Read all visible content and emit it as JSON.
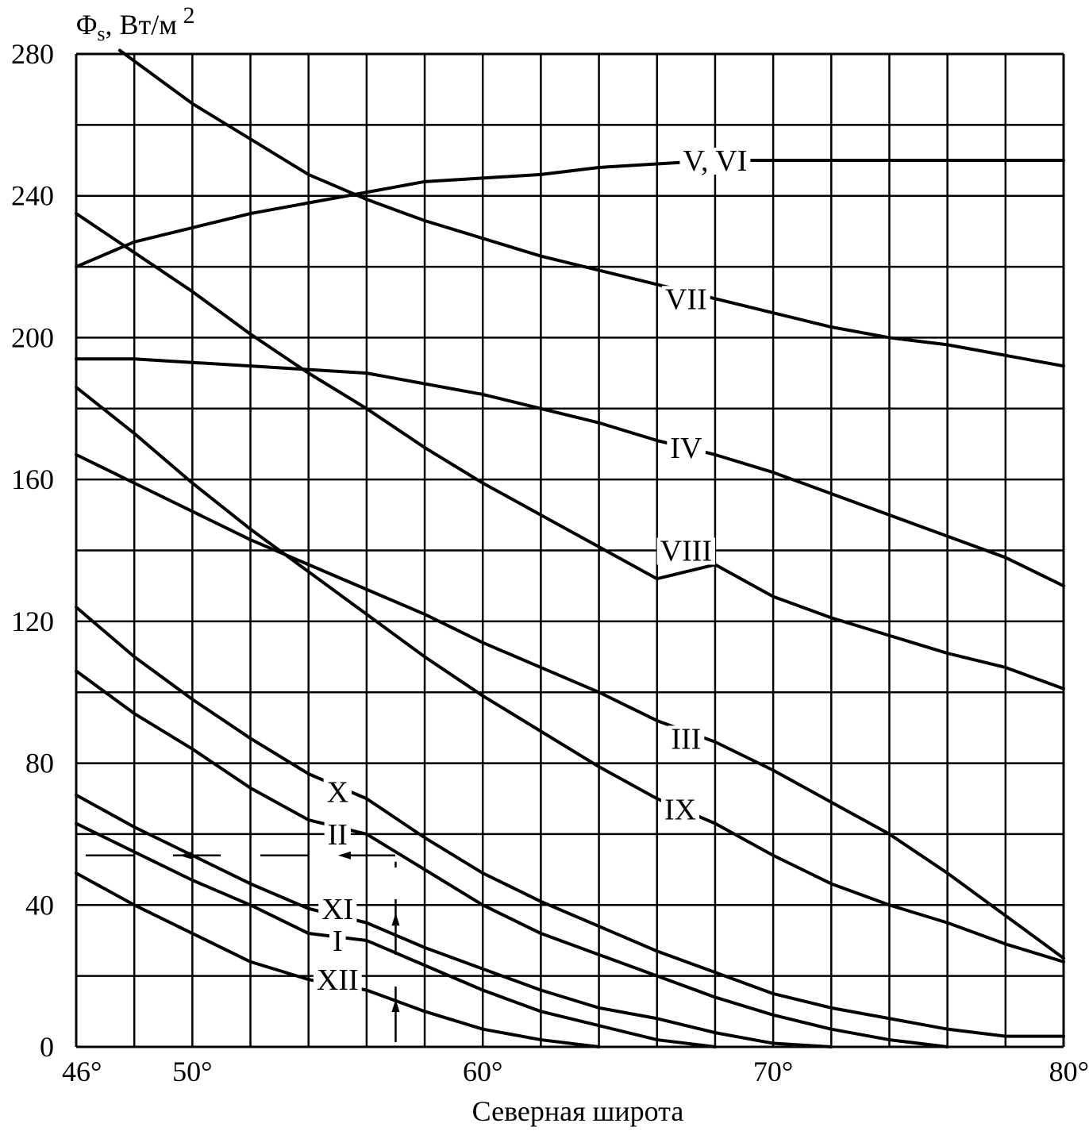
{
  "chart_data": {
    "type": "line",
    "ylabel": "Φs, Вт/м",
    "ylabel_sub": "s",
    "ylabel_sup": "2",
    "xlabel": "Северная широта",
    "xlim": [
      46,
      80
    ],
    "ylim": [
      0,
      280
    ],
    "grid": true,
    "x_ticks": [
      {
        "value": 46,
        "label": "46°"
      },
      {
        "value": 50,
        "label": "50°"
      },
      {
        "value": 60,
        "label": "60°"
      },
      {
        "value": 70,
        "label": "70°"
      },
      {
        "value": 80,
        "label": "80°"
      }
    ],
    "y_ticks": [
      {
        "value": 0,
        "label": "0"
      },
      {
        "value": 40,
        "label": "40"
      },
      {
        "value": 80,
        "label": "80"
      },
      {
        "value": 120,
        "label": "120"
      },
      {
        "value": 160,
        "label": "160"
      },
      {
        "value": 200,
        "label": "200"
      },
      {
        "value": 240,
        "label": "240"
      },
      {
        "value": 280,
        "label": "280"
      }
    ],
    "series": [
      {
        "name": "V, VI",
        "label_at": [
          68,
          250
        ],
        "points": [
          [
            46,
            220
          ],
          [
            48,
            227
          ],
          [
            50,
            231
          ],
          [
            52,
            235
          ],
          [
            54,
            238
          ],
          [
            56,
            241
          ],
          [
            58,
            244
          ],
          [
            60,
            245
          ],
          [
            62,
            246
          ],
          [
            64,
            248
          ],
          [
            66,
            249
          ],
          [
            68,
            250
          ],
          [
            72,
            250
          ],
          [
            76,
            250
          ],
          [
            80,
            250
          ]
        ]
      },
      {
        "name": "VII",
        "label_at": [
          67,
          211
        ],
        "points": [
          [
            47.5,
            281
          ],
          [
            50,
            266
          ],
          [
            52,
            256
          ],
          [
            54,
            246
          ],
          [
            56,
            239
          ],
          [
            58,
            233
          ],
          [
            60,
            228
          ],
          [
            62,
            223
          ],
          [
            64,
            219
          ],
          [
            66,
            215
          ],
          [
            68,
            211
          ],
          [
            70,
            207
          ],
          [
            72,
            203
          ],
          [
            74,
            200
          ],
          [
            76,
            198
          ],
          [
            78,
            195
          ],
          [
            80,
            192
          ]
        ]
      },
      {
        "name": "IV",
        "label_at": [
          67,
          169
        ],
        "points": [
          [
            46,
            194
          ],
          [
            48,
            194
          ],
          [
            50,
            193
          ],
          [
            52,
            192
          ],
          [
            54,
            191
          ],
          [
            56,
            190
          ],
          [
            58,
            187
          ],
          [
            60,
            184
          ],
          [
            62,
            180
          ],
          [
            64,
            176
          ],
          [
            66,
            171
          ],
          [
            68,
            167
          ],
          [
            70,
            162
          ],
          [
            72,
            156
          ],
          [
            74,
            150
          ],
          [
            76,
            144
          ],
          [
            78,
            138
          ],
          [
            80,
            130
          ]
        ]
      },
      {
        "name": "VIII",
        "label_at": [
          67,
          140
        ],
        "points": [
          [
            46,
            235
          ],
          [
            48,
            224
          ],
          [
            50,
            213
          ],
          [
            52,
            201
          ],
          [
            54,
            190
          ],
          [
            56,
            180
          ],
          [
            58,
            169
          ],
          [
            60,
            159
          ],
          [
            62,
            150
          ],
          [
            64,
            141
          ],
          [
            66,
            132
          ],
          [
            68,
            136
          ],
          [
            70,
            127
          ],
          [
            72,
            121
          ],
          [
            74,
            116
          ],
          [
            76,
            111
          ],
          [
            78,
            107
          ],
          [
            80,
            101
          ]
        ]
      },
      {
        "name": "III",
        "label_at": [
          67,
          87
        ],
        "points": [
          [
            46,
            167
          ],
          [
            48,
            159
          ],
          [
            50,
            151
          ],
          [
            52,
            143
          ],
          [
            54,
            136
          ],
          [
            56,
            129
          ],
          [
            58,
            122
          ],
          [
            60,
            114
          ],
          [
            62,
            107
          ],
          [
            64,
            100
          ],
          [
            66,
            92
          ],
          [
            68,
            86
          ],
          [
            70,
            78
          ],
          [
            72,
            69
          ],
          [
            74,
            60
          ],
          [
            76,
            49
          ],
          [
            78,
            37
          ],
          [
            80,
            25
          ]
        ]
      },
      {
        "name": "IX",
        "label_at": [
          66.8,
          67
        ],
        "points": [
          [
            46,
            186
          ],
          [
            48,
            173
          ],
          [
            50,
            159
          ],
          [
            52,
            146
          ],
          [
            54,
            134
          ],
          [
            56,
            122
          ],
          [
            58,
            110
          ],
          [
            60,
            99
          ],
          [
            62,
            89
          ],
          [
            64,
            79
          ],
          [
            66,
            70
          ],
          [
            68,
            63
          ],
          [
            70,
            54
          ],
          [
            72,
            46
          ],
          [
            74,
            40
          ],
          [
            76,
            35
          ],
          [
            78,
            29
          ],
          [
            80,
            24
          ]
        ]
      },
      {
        "name": "X",
        "label_at": [
          55,
          72
        ],
        "points": [
          [
            46,
            124
          ],
          [
            48,
            110
          ],
          [
            50,
            98
          ],
          [
            52,
            87
          ],
          [
            54,
            77
          ],
          [
            56,
            70
          ],
          [
            58,
            59
          ],
          [
            60,
            49
          ],
          [
            62,
            41
          ],
          [
            64,
            34
          ],
          [
            66,
            27
          ],
          [
            68,
            21
          ],
          [
            70,
            15
          ],
          [
            72,
            11
          ],
          [
            74,
            8
          ],
          [
            76,
            5
          ],
          [
            78,
            3
          ],
          [
            80,
            3
          ]
        ]
      },
      {
        "name": "II",
        "label_at": [
          55,
          60
        ],
        "points": [
          [
            46,
            106
          ],
          [
            48,
            94
          ],
          [
            50,
            84
          ],
          [
            52,
            73
          ],
          [
            54,
            64
          ],
          [
            56,
            60
          ],
          [
            58,
            50
          ],
          [
            60,
            40
          ],
          [
            62,
            32
          ],
          [
            64,
            26
          ],
          [
            66,
            20
          ],
          [
            68,
            14
          ],
          [
            70,
            9
          ],
          [
            72,
            5
          ],
          [
            74,
            2
          ],
          [
            76,
            0
          ]
        ]
      },
      {
        "name": "XI",
        "label_at": [
          55,
          39
        ],
        "points": [
          [
            46,
            71
          ],
          [
            48,
            62
          ],
          [
            50,
            54
          ],
          [
            52,
            46
          ],
          [
            54,
            39
          ],
          [
            56,
            35
          ],
          [
            58,
            28
          ],
          [
            60,
            22
          ],
          [
            62,
            16
          ],
          [
            64,
            11
          ],
          [
            66,
            8
          ],
          [
            68,
            4
          ],
          [
            70,
            1
          ],
          [
            72,
            0
          ]
        ]
      },
      {
        "name": "I",
        "label_at": [
          55,
          30
        ],
        "points": [
          [
            46,
            63
          ],
          [
            48,
            55
          ],
          [
            50,
            47
          ],
          [
            52,
            40
          ],
          [
            54,
            32
          ],
          [
            56,
            30
          ],
          [
            58,
            23
          ],
          [
            60,
            16
          ],
          [
            62,
            10
          ],
          [
            64,
            6
          ],
          [
            66,
            2
          ],
          [
            68,
            0
          ]
        ]
      },
      {
        "name": "XII",
        "label_at": [
          55,
          19
        ],
        "points": [
          [
            46,
            49
          ],
          [
            48,
            40
          ],
          [
            50,
            32
          ],
          [
            52,
            24
          ],
          [
            54,
            19
          ],
          [
            56,
            16
          ],
          [
            58,
            10
          ],
          [
            60,
            5
          ],
          [
            62,
            2
          ],
          [
            64,
            0
          ]
        ]
      }
    ],
    "annotation_level": 54,
    "annotation_latitude": 57
  }
}
